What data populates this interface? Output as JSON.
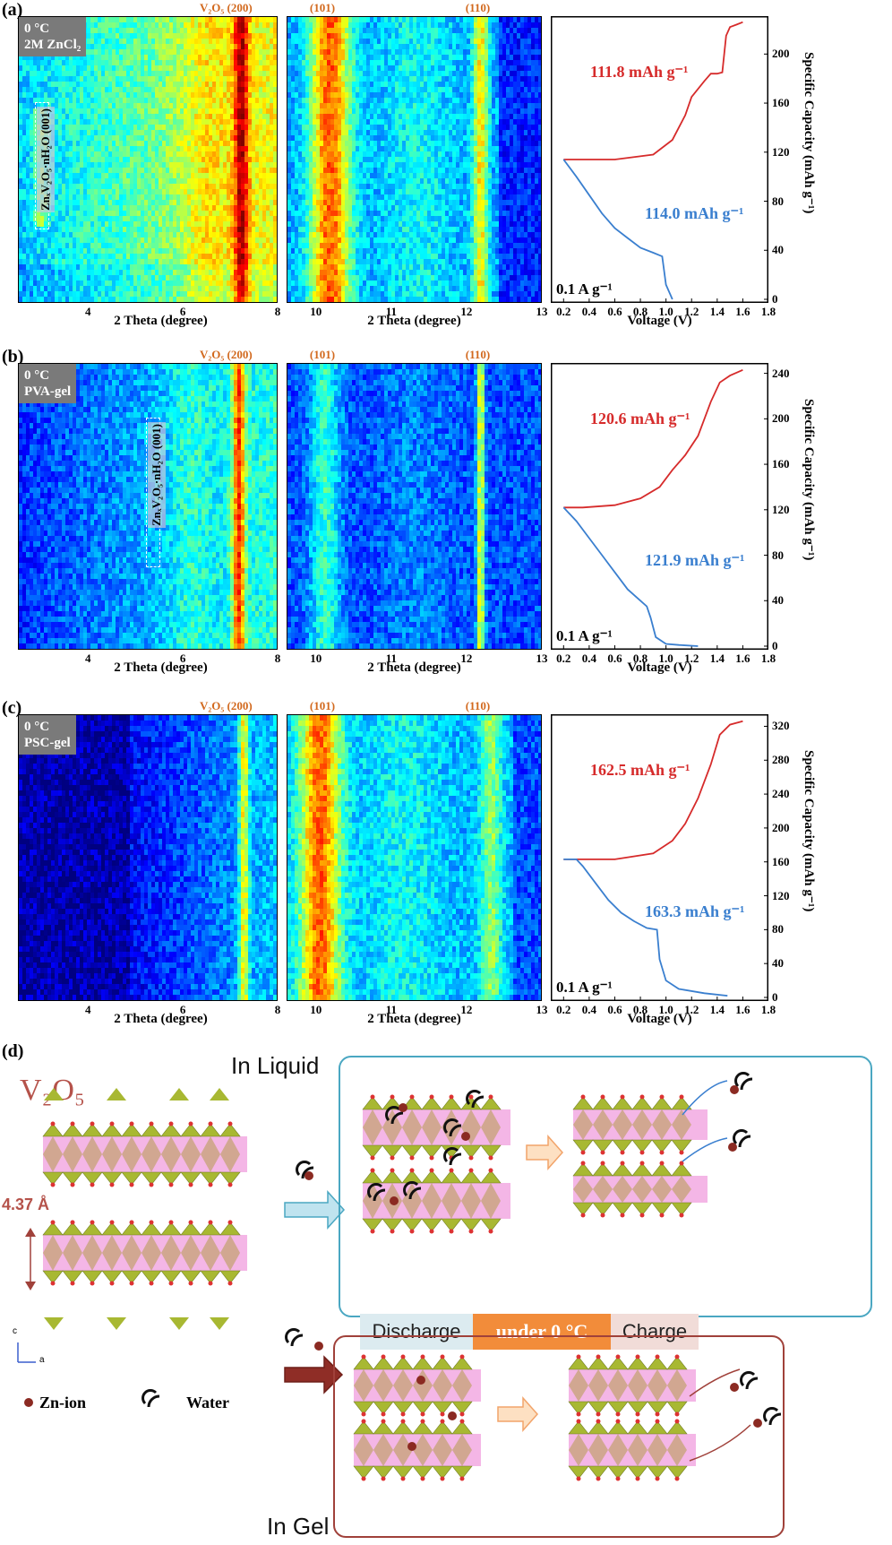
{
  "panels": [
    {
      "label": "(a)",
      "tag_lines": [
        "0 °C",
        "2M ZnCl₂"
      ],
      "phase_label": "ZnₓV₂O₅·nH₂O (001)",
      "peak_left": {
        "compound": "V₂O₅",
        "index": "(200)"
      },
      "peaks_mid": [
        "(101)",
        "(110)"
      ],
      "x_ticks_left": [
        "4",
        "6",
        "8"
      ],
      "x_ticks_mid": [
        "10",
        "11",
        "12",
        "13"
      ],
      "xlabel": "2 Theta (degree)",
      "charge_cap": "111.8 mAh g⁻¹",
      "discharge_cap": "114.0 mAh g⁻¹",
      "rate": "0.1 A g⁻¹",
      "y_ticks": [
        "0",
        "40",
        "80",
        "120",
        "160",
        "200"
      ],
      "ymax": 228,
      "theme": "a"
    },
    {
      "label": "(b)",
      "tag_lines": [
        "0 °C",
        "PVA-gel"
      ],
      "phase_label": "ZnₓV₂O₅·nH₂O (001)",
      "peak_left": {
        "compound": "V₂O₅",
        "index": "(200)"
      },
      "peaks_mid": [
        "(101)",
        "(110)"
      ],
      "x_ticks_left": [
        "4",
        "6",
        "8"
      ],
      "x_ticks_mid": [
        "10",
        "11",
        "12",
        "13"
      ],
      "xlabel": "2 Theta (degree)",
      "charge_cap": "120.6 mAh g⁻¹",
      "discharge_cap": "121.9 mAh g⁻¹",
      "rate": "0.1 A g⁻¹",
      "y_ticks": [
        "0",
        "40",
        "80",
        "120",
        "160",
        "200",
        "240"
      ],
      "ymax": 246,
      "theme": "b"
    },
    {
      "label": "(c)",
      "tag_lines": [
        "0 °C",
        "PSC-gel"
      ],
      "phase_label": "",
      "peak_left": {
        "compound": "V₂O₅",
        "index": "(200)"
      },
      "peaks_mid": [
        "(101)",
        "(110)"
      ],
      "x_ticks_left": [
        "4",
        "6",
        "8"
      ],
      "x_ticks_mid": [
        "10",
        "11",
        "12",
        "13"
      ],
      "xlabel": "2 Theta (degree)",
      "charge_cap": "162.5 mAh g⁻¹",
      "discharge_cap": "163.3 mAh g⁻¹",
      "rate": "0.1 A g⁻¹",
      "y_ticks": [
        "0",
        "40",
        "80",
        "120",
        "160",
        "200",
        "240",
        "280",
        "320"
      ],
      "ymax": 330,
      "theme": "c"
    }
  ],
  "gcd_x_ticks": [
    "0.2",
    "0.4",
    "0.6",
    "0.8",
    "1.0",
    "1.2",
    "1.4",
    "1.6",
    "1.8"
  ],
  "gcd_xlabel": "Voltage (V)",
  "gcd_ylabel": "Specific Capacity (mAh g⁻¹)",
  "chart_data": [
    {
      "type": "line",
      "title": "",
      "xlabel": "Voltage (V)",
      "ylabel": "Specific Capacity (mAh g⁻¹)",
      "xlim": [
        0.1,
        1.8
      ],
      "ylim": [
        0,
        228
      ],
      "series": [
        {
          "name": "",
          "color": "#d62b2b",
          "x": [
            0.2,
            0.35,
            0.6,
            0.9,
            1.05,
            1.1,
            1.15,
            1.2,
            1.3,
            1.35,
            1.4,
            1.44,
            1.47,
            1.5,
            1.55,
            1.6
          ],
          "y": [
            114,
            114,
            114,
            118,
            130,
            140,
            150,
            165,
            178,
            184,
            184,
            185,
            215,
            222,
            224,
            226
          ]
        },
        {
          "name": "",
          "color": "#3a7fcf",
          "x": [
            0.2,
            0.3,
            0.4,
            0.5,
            0.6,
            0.7,
            0.8,
            0.9,
            0.97,
            1.0,
            1.05
          ],
          "y": [
            114,
            100,
            85,
            70,
            58,
            50,
            42,
            38,
            35,
            12,
            0
          ]
        }
      ]
    },
    {
      "type": "line",
      "title": "",
      "xlabel": "Voltage (V)",
      "ylabel": "Specific Capacity (mAh g⁻¹)",
      "xlim": [
        0.1,
        1.8
      ],
      "ylim": [
        0,
        246
      ],
      "series": [
        {
          "name": "",
          "color": "#d62b2b",
          "x": [
            0.2,
            0.35,
            0.6,
            0.8,
            0.95,
            1.05,
            1.15,
            1.25,
            1.35,
            1.42,
            1.5,
            1.6
          ],
          "y": [
            122,
            122,
            124,
            130,
            140,
            155,
            168,
            185,
            215,
            232,
            238,
            243
          ]
        },
        {
          "name": "",
          "color": "#3a7fcf",
          "x": [
            0.2,
            0.3,
            0.4,
            0.5,
            0.6,
            0.7,
            0.8,
            0.85,
            0.88,
            0.92,
            1.0,
            1.1,
            1.25
          ],
          "y": [
            122,
            110,
            95,
            80,
            65,
            50,
            40,
            35,
            25,
            8,
            2,
            1,
            0
          ]
        }
      ]
    },
    {
      "type": "line",
      "title": "",
      "xlabel": "Voltage (V)",
      "ylabel": "Specific Capacity (mAh g⁻¹)",
      "xlim": [
        0.1,
        1.8
      ],
      "ylim": [
        0,
        330
      ],
      "series": [
        {
          "name": "",
          "color": "#d62b2b",
          "x": [
            0.2,
            0.3,
            0.6,
            0.9,
            1.05,
            1.15,
            1.25,
            1.35,
            1.42,
            1.5,
            1.6
          ],
          "y": [
            163,
            163,
            163,
            170,
            185,
            205,
            235,
            275,
            310,
            322,
            326
          ]
        },
        {
          "name": "",
          "color": "#3a7fcf",
          "x": [
            0.2,
            0.3,
            0.35,
            0.45,
            0.55,
            0.65,
            0.75,
            0.85,
            0.93,
            0.95,
            1.0,
            1.1,
            1.3,
            1.48
          ],
          "y": [
            163,
            163,
            155,
            135,
            115,
            100,
            90,
            82,
            80,
            45,
            20,
            10,
            5,
            2
          ]
        }
      ]
    }
  ],
  "schematic": {
    "label": "(d)",
    "title_v2o5": "V₂O₅",
    "spacing": "4.37 Å",
    "in_liquid": "In Liquid",
    "in_gel": "In Gel",
    "bar": {
      "discharge": "Discharge",
      "mid": "under 0 °C",
      "charge": "Charge"
    },
    "legend_zn": "Zn-ion",
    "legend_water": "Water",
    "axis_c": "c",
    "axis_a": "a",
    "colors": {
      "liquid": "#4aa7c2",
      "gel": "#a0413a",
      "pink": "#f4b6e6",
      "accent": "#f28c3a"
    }
  }
}
